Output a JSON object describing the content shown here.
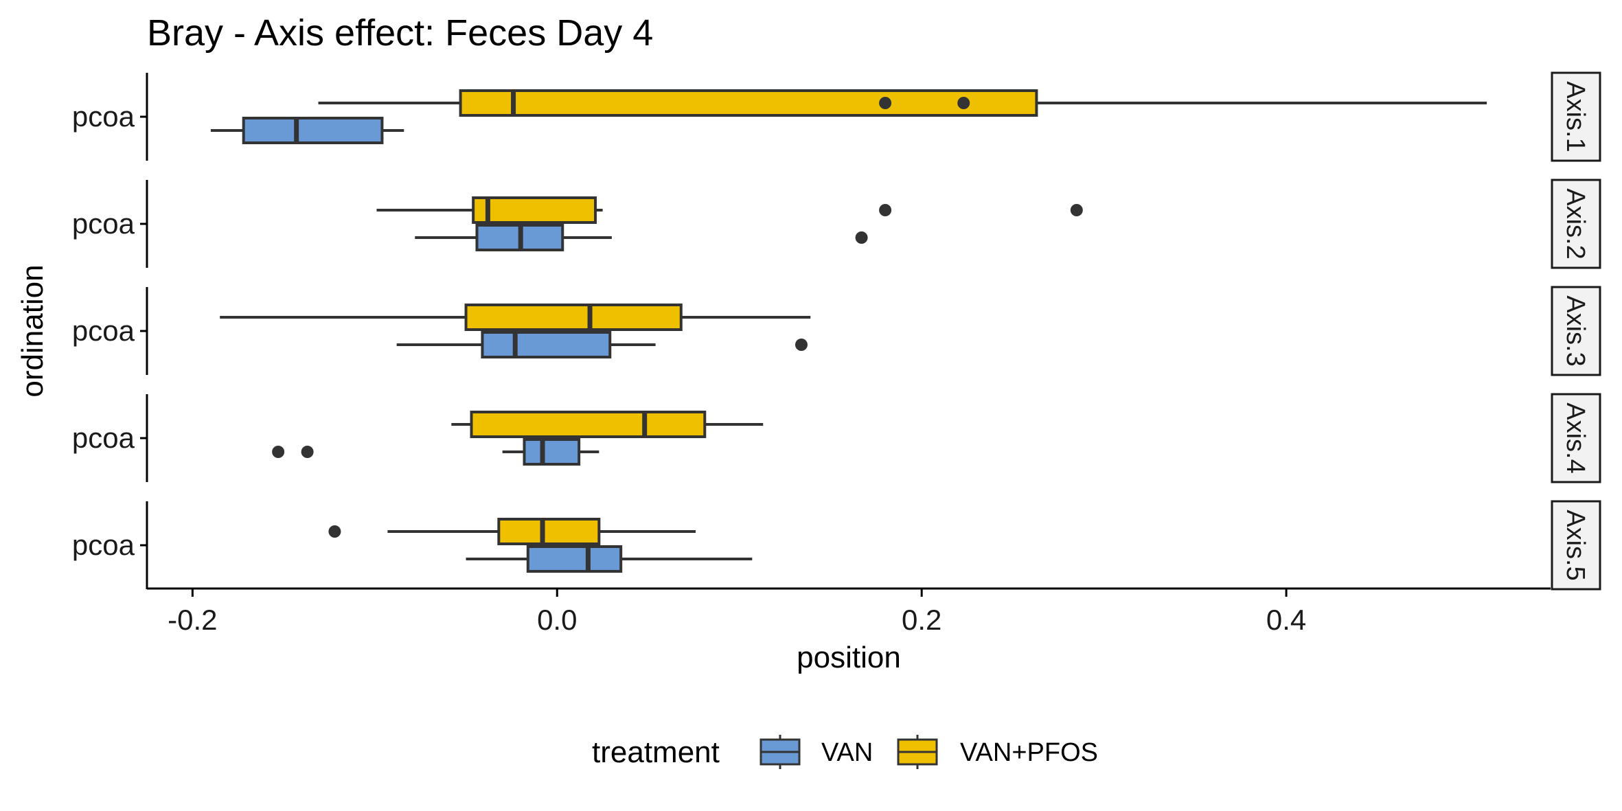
{
  "chart_data": {
    "type": "boxplot",
    "title": "Bray - Axis effect: Feces Day 4",
    "xlabel": "position",
    "ylabel": "ordination",
    "xlim": [
      -0.225,
      0.545
    ],
    "x_ticks": [
      -0.2,
      0.0,
      0.2,
      0.4
    ],
    "x_tick_labels": [
      "-0.2",
      "0.0",
      "0.2",
      "0.4"
    ],
    "grid": false,
    "legend": {
      "title": "treatment",
      "position": "bottom",
      "items": [
        {
          "label": "VAN",
          "color": "#6A9AD5"
        },
        {
          "label": "VAN+PFOS",
          "color": "#EFC000"
        }
      ]
    },
    "colors": {
      "VAN": "#6A9AD5",
      "VAN+PFOS": "#EFC000",
      "outline": "#333333",
      "strip_fill": "#F2F2F2"
    },
    "panels": [
      {
        "strip": "Axis.1",
        "category": "pcoa",
        "boxes": [
          {
            "treatment": "VAN",
            "whisker_low": -0.19,
            "q1": -0.172,
            "median": -0.143,
            "q3": -0.096,
            "whisker_high": -0.084,
            "outliers": []
          },
          {
            "treatment": "VAN+PFOS",
            "whisker_low": -0.131,
            "q1": -0.053,
            "median": -0.024,
            "q3": 0.263,
            "whisker_high": 0.51,
            "outliers": [
              0.18,
              0.223
            ]
          }
        ]
      },
      {
        "strip": "Axis.2",
        "category": "pcoa",
        "boxes": [
          {
            "treatment": "VAN",
            "whisker_low": -0.078,
            "q1": -0.044,
            "median": -0.02,
            "q3": 0.003,
            "whisker_high": 0.03,
            "outliers": [
              0.167
            ]
          },
          {
            "treatment": "VAN+PFOS",
            "whisker_low": -0.099,
            "q1": -0.046,
            "median": -0.038,
            "q3": 0.021,
            "whisker_high": 0.025,
            "outliers": [
              0.18,
              0.285
            ]
          }
        ]
      },
      {
        "strip": "Axis.3",
        "category": "pcoa",
        "boxes": [
          {
            "treatment": "VAN",
            "whisker_low": -0.088,
            "q1": -0.041,
            "median": -0.023,
            "q3": 0.029,
            "whisker_high": 0.054,
            "outliers": [
              0.134
            ]
          },
          {
            "treatment": "VAN+PFOS",
            "whisker_low": -0.185,
            "q1": -0.05,
            "median": 0.018,
            "q3": 0.068,
            "whisker_high": 0.139,
            "outliers": []
          }
        ]
      },
      {
        "strip": "Axis.4",
        "category": "pcoa",
        "boxes": [
          {
            "treatment": "VAN",
            "whisker_low": -0.03,
            "q1": -0.018,
            "median": -0.008,
            "q3": 0.012,
            "whisker_high": 0.023,
            "outliers": [
              -0.153,
              -0.137
            ]
          },
          {
            "treatment": "VAN+PFOS",
            "whisker_low": -0.058,
            "q1": -0.047,
            "median": 0.048,
            "q3": 0.081,
            "whisker_high": 0.113,
            "outliers": []
          }
        ]
      },
      {
        "strip": "Axis.5",
        "category": "pcoa",
        "boxes": [
          {
            "treatment": "VAN",
            "whisker_low": -0.05,
            "q1": -0.016,
            "median": 0.017,
            "q3": 0.035,
            "whisker_high": 0.107,
            "outliers": []
          },
          {
            "treatment": "VAN+PFOS",
            "whisker_low": -0.093,
            "q1": -0.032,
            "median": -0.008,
            "q3": 0.023,
            "whisker_high": 0.076,
            "outliers": [
              -0.122
            ]
          }
        ]
      }
    ]
  }
}
